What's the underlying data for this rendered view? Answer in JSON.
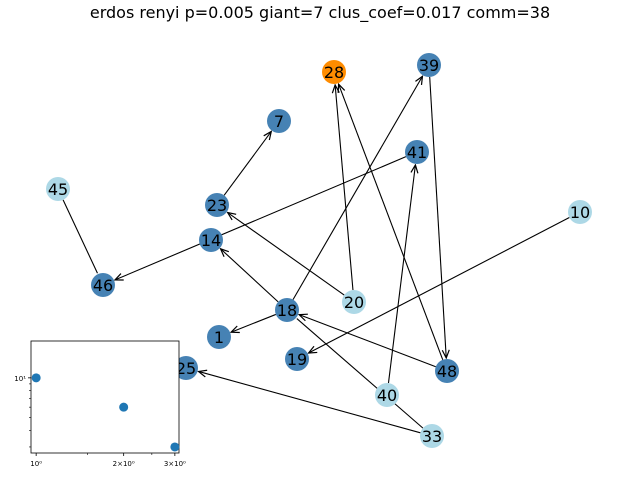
{
  "title": "erdos renyi p=0.005 giant=7 clus_coef=0.017 comm=38",
  "colors": {
    "steel": "#4682b4",
    "light": "#add8e6",
    "orange": "#ff8c00",
    "edge": "#000000",
    "inset_point": "#1f77b4"
  },
  "nodes": [
    {
      "id": "28",
      "color": "orange"
    },
    {
      "id": "39",
      "color": "steel"
    },
    {
      "id": "7",
      "color": "steel"
    },
    {
      "id": "41",
      "color": "steel"
    },
    {
      "id": "45",
      "color": "light"
    },
    {
      "id": "23",
      "color": "steel"
    },
    {
      "id": "14",
      "color": "steel"
    },
    {
      "id": "10",
      "color": "light"
    },
    {
      "id": "46",
      "color": "steel"
    },
    {
      "id": "20",
      "color": "light"
    },
    {
      "id": "18",
      "color": "steel"
    },
    {
      "id": "1",
      "color": "steel"
    },
    {
      "id": "19",
      "color": "steel"
    },
    {
      "id": "25",
      "color": "steel"
    },
    {
      "id": "48",
      "color": "steel"
    },
    {
      "id": "40",
      "color": "light"
    },
    {
      "id": "33",
      "color": "light"
    }
  ],
  "edges": [
    {
      "from": "23",
      "to": "7",
      "arrow": true
    },
    {
      "from": "41",
      "to": "46",
      "arrow": true
    },
    {
      "from": "18",
      "to": "14",
      "arrow": true
    },
    {
      "from": "20",
      "to": "23",
      "arrow": true
    },
    {
      "from": "20",
      "to": "28",
      "arrow": true
    },
    {
      "from": "48",
      "to": "28",
      "arrow": true
    },
    {
      "from": "39",
      "to": "48",
      "arrow": true
    },
    {
      "from": "18",
      "to": "39",
      "arrow": true
    },
    {
      "from": "40",
      "to": "41",
      "arrow": true
    },
    {
      "from": "10",
      "to": "19",
      "arrow": true
    },
    {
      "from": "18",
      "to": "1",
      "arrow": true
    },
    {
      "from": "48",
      "to": "18",
      "arrow": true
    },
    {
      "from": "33",
      "to": "18",
      "arrow": false
    },
    {
      "from": "33",
      "to": "25",
      "arrow": true
    },
    {
      "from": "45",
      "to": "46",
      "arrow": false
    }
  ],
  "inset": {
    "xscale": "log",
    "yscale": "log",
    "x_ticks": [
      "10^0",
      "2×10^0",
      "3×10^0"
    ],
    "y_ticks": [
      "10^1"
    ],
    "points": [
      {
        "x": 1,
        "y": 10
      },
      {
        "x": 2,
        "y": 6
      },
      {
        "x": 3,
        "y": 3
      }
    ]
  }
}
